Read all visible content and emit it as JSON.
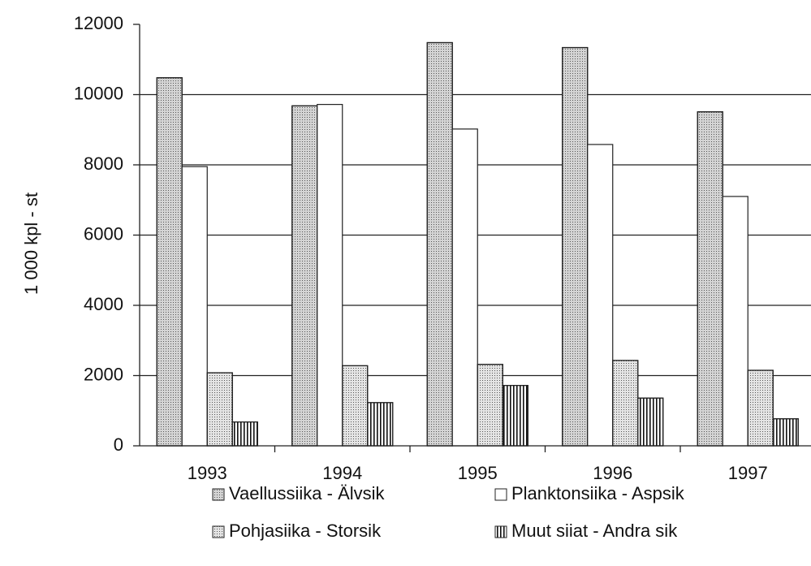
{
  "chart_data": {
    "type": "bar",
    "y_label": "1 000 kpl - st",
    "categories": [
      "1993",
      "1994",
      "1995",
      "1996",
      "1997"
    ],
    "series": [
      {
        "name": "Vaellussiika - Älvsik",
        "color": "#d4d4d4",
        "pattern": "dots",
        "values": [
          10480,
          9680,
          11480,
          11340,
          9510
        ]
      },
      {
        "name": "Planktonsiika - Aspsik",
        "color": "#ffffff",
        "pattern": "none",
        "values": [
          7950,
          9720,
          9020,
          8580,
          7100
        ]
      },
      {
        "name": "Pohjasiika - Storsik",
        "color": "#e4e4e4",
        "pattern": "dots",
        "values": [
          2080,
          2280,
          2320,
          2430,
          2150
        ]
      },
      {
        "name": "Muut siiat - Andra sik",
        "color": "#ffffff",
        "pattern": "vertical-lines",
        "values": [
          680,
          1230,
          1720,
          1360,
          770
        ]
      }
    ],
    "ylim": [
      0,
      12000
    ],
    "yticks": [
      0,
      2000,
      4000,
      6000,
      8000,
      10000,
      12000
    ],
    "grid": true
  }
}
